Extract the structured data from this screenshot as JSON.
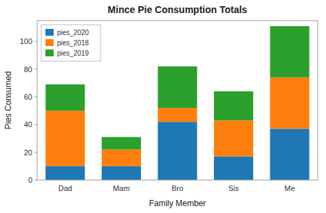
{
  "chart_data": {
    "type": "bar",
    "stacked": true,
    "title": "Mince Pie Consumption Totals",
    "xlabel": "Family Member",
    "ylabel": "Pies Consumed",
    "categories": [
      "Dad",
      "Mam",
      "Bro",
      "Sis",
      "Me"
    ],
    "series": [
      {
        "name": "pies_2020",
        "color": "#1f77b4",
        "values": [
          10,
          10,
          42,
          17,
          37
        ]
      },
      {
        "name": "pies_2018",
        "color": "#ff7f0e",
        "values": [
          40,
          12,
          10,
          26,
          37
        ]
      },
      {
        "name": "pies_2019",
        "color": "#2ca02c",
        "values": [
          19,
          9,
          30,
          21,
          37
        ]
      }
    ],
    "ylim": [
      0,
      115
    ],
    "yticks": [
      0,
      20,
      40,
      60,
      80,
      100
    ],
    "grid": false,
    "legend": "upper left"
  }
}
